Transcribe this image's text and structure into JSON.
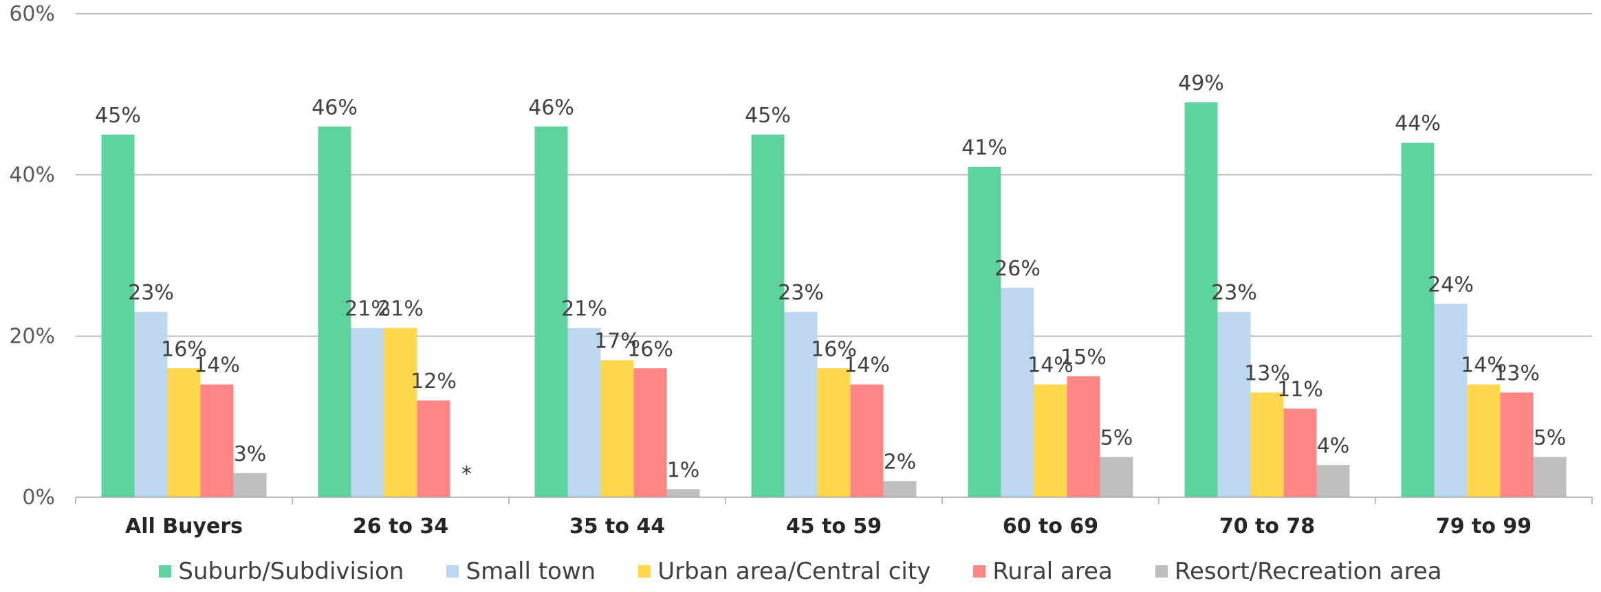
{
  "chart_data": {
    "type": "bar",
    "ylim": [
      0,
      60
    ],
    "yticks": [
      "0%",
      "20%",
      "40%",
      "60%"
    ],
    "ytick_values": [
      0,
      20,
      40,
      60
    ],
    "grid": true,
    "legend_position": "bottom",
    "categories": [
      "All Buyers",
      "26 to 34",
      "35 to 44",
      "45 to 59",
      "60 to 69",
      "70 to 78",
      "79 to 99"
    ],
    "series": [
      {
        "name": "Suburb/Subdivision",
        "color": "#5FD39D",
        "values": [
          45,
          46,
          46,
          45,
          41,
          49,
          44
        ]
      },
      {
        "name": "Small town",
        "color": "#BDD7EE",
        "values": [
          23,
          21,
          21,
          23,
          26,
          23,
          24
        ]
      },
      {
        "name": "Urban area/Central city",
        "color": "#FFD84F",
        "values": [
          16,
          21,
          17,
          16,
          14,
          13,
          14
        ]
      },
      {
        "name": "Rural area",
        "color": "#FF8685",
        "values": [
          14,
          12,
          16,
          14,
          15,
          11,
          13
        ]
      },
      {
        "name": "Resort/Recreation area",
        "color": "#BFBFBF",
        "values": [
          3,
          null,
          1,
          2,
          5,
          4,
          5
        ]
      }
    ],
    "data_labels": [
      [
        "45%",
        "46%",
        "46%",
        "45%",
        "41%",
        "49%",
        "44%"
      ],
      [
        "23%",
        "21%",
        "21%",
        "23%",
        "26%",
        "23%",
        "24%"
      ],
      [
        "16%",
        "21%",
        "17%",
        "16%",
        "14%",
        "13%",
        "14%"
      ],
      [
        "14%",
        "12%",
        "16%",
        "14%",
        "15%",
        "11%",
        "13%"
      ],
      [
        "3%",
        "*",
        "1%",
        "2%",
        "5%",
        "4%",
        "5%"
      ]
    ]
  }
}
